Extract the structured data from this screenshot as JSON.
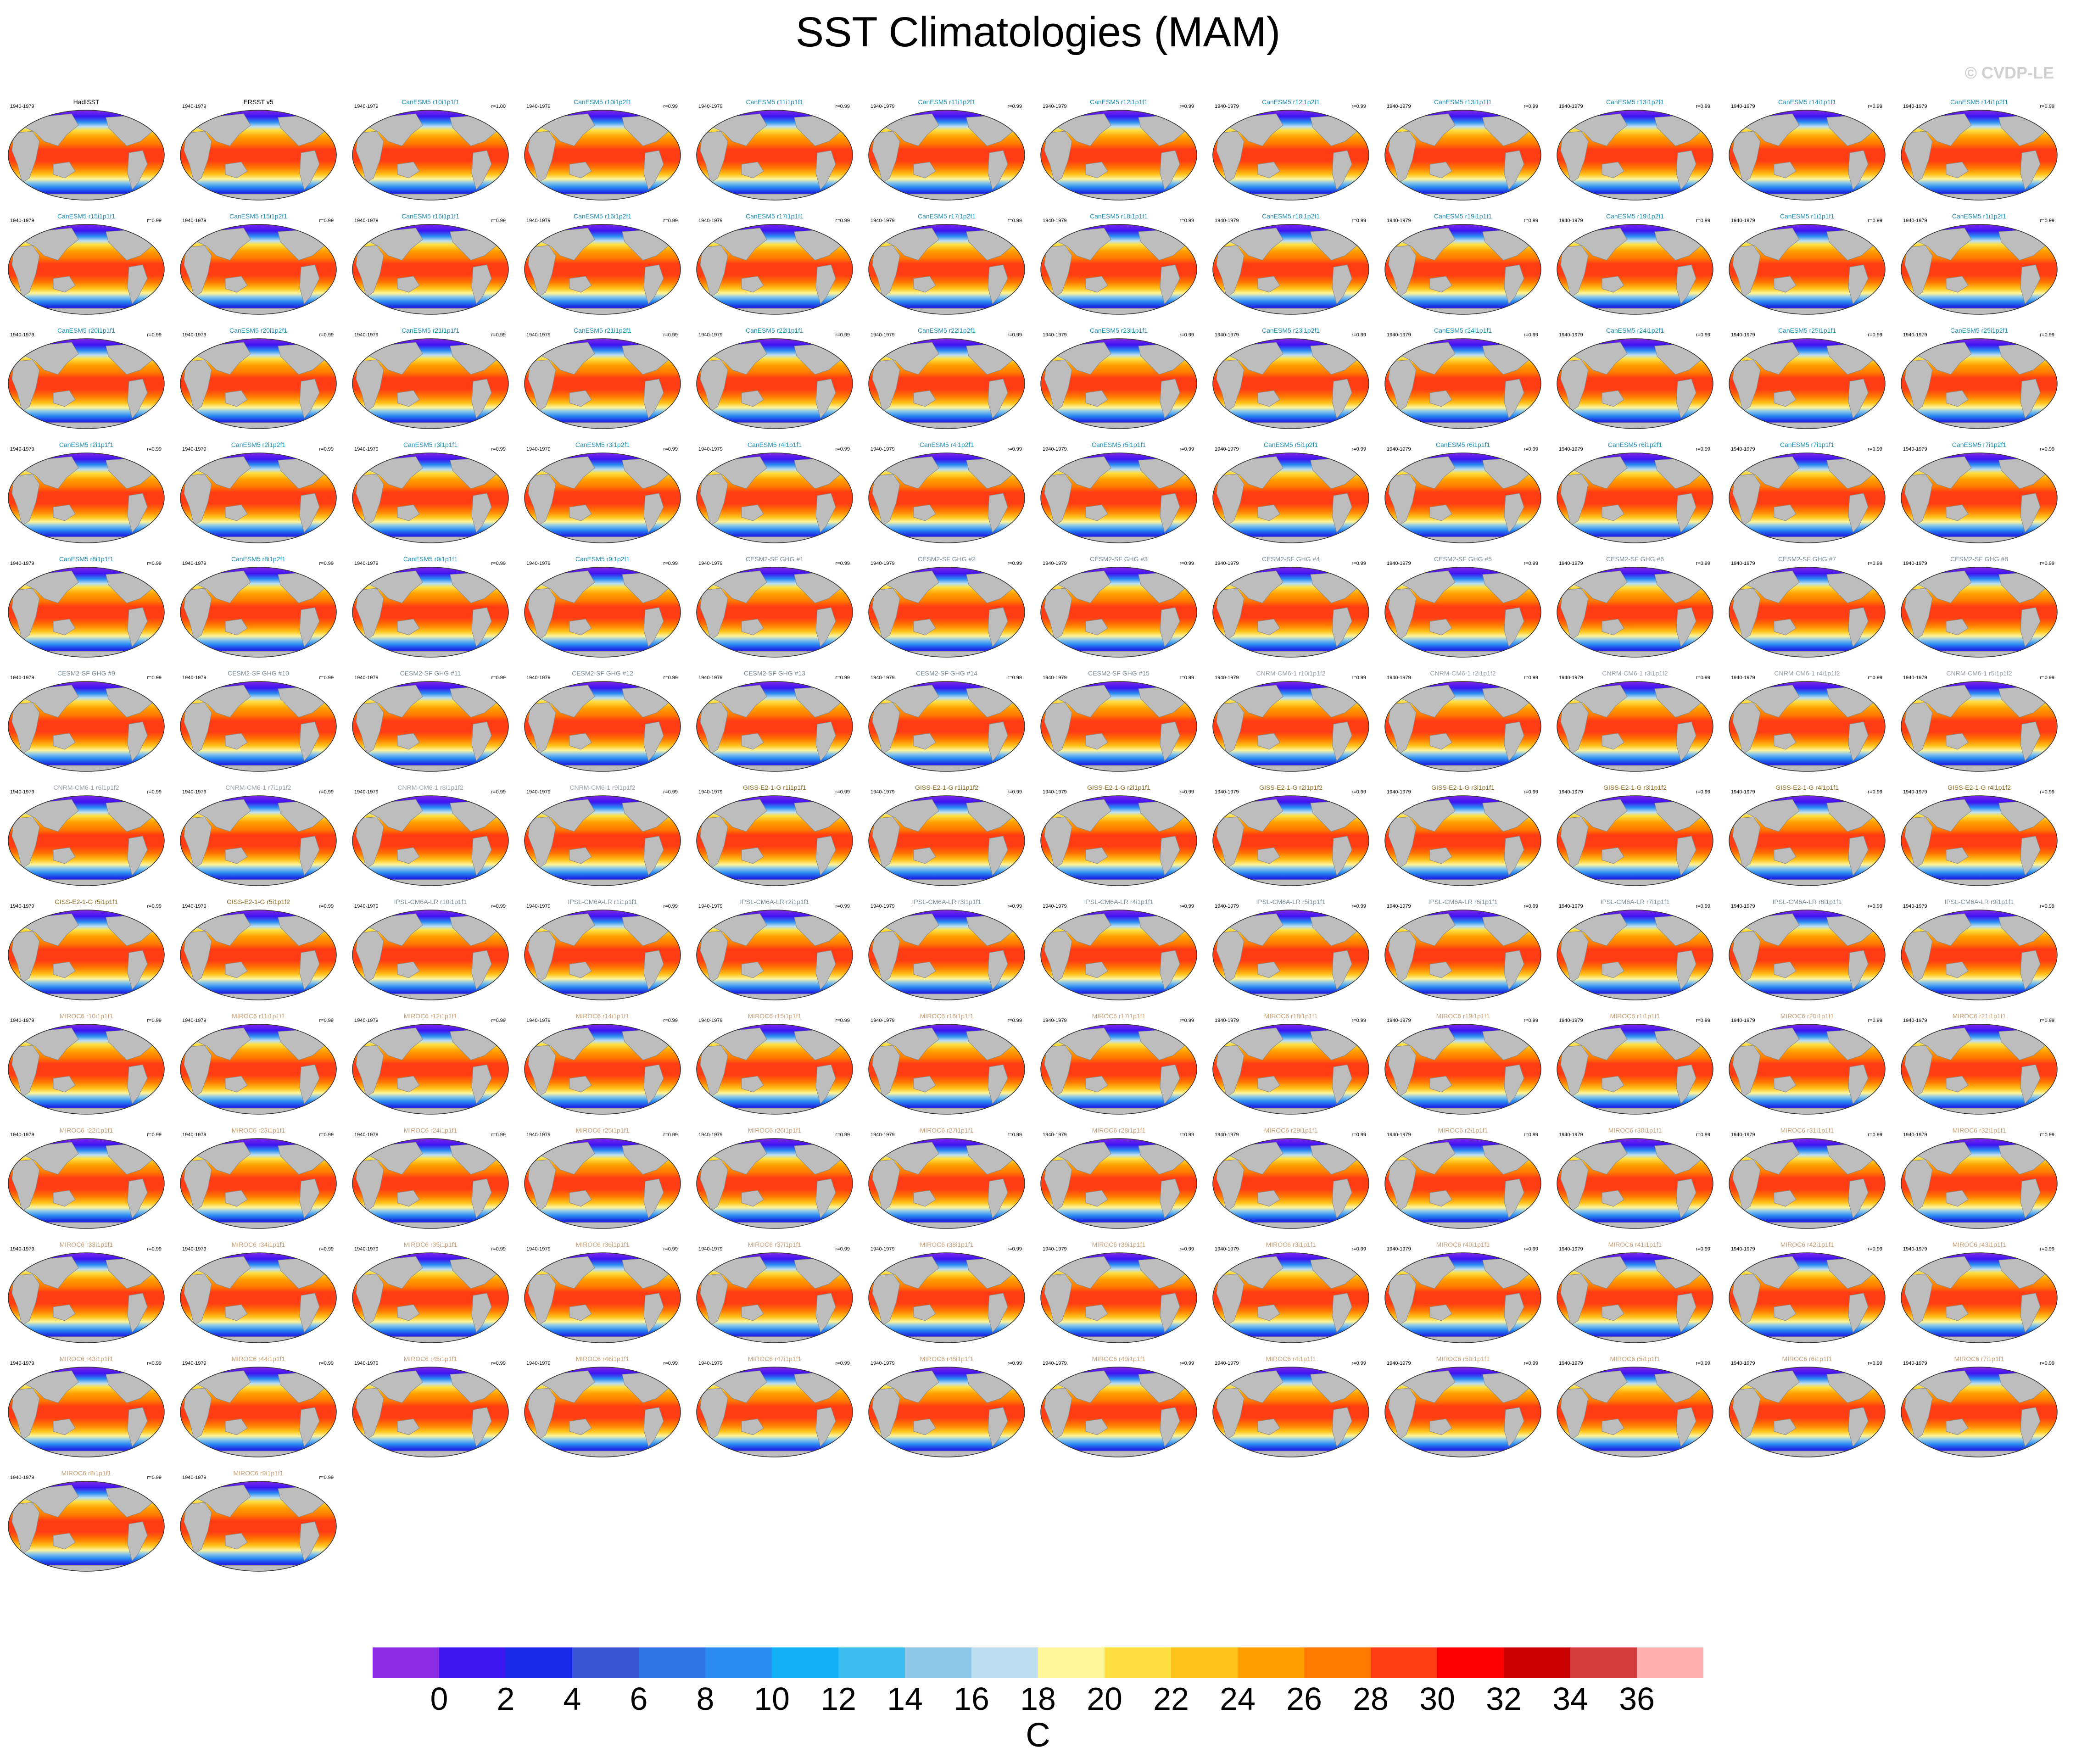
{
  "title": "SST Climatologies (MAM)",
  "copyright": "© CVDP-LE",
  "period": "1940-1979",
  "colorbar": {
    "unit": "C",
    "ticks": [
      "0",
      "2",
      "4",
      "6",
      "8",
      "10",
      "12",
      "14",
      "16",
      "18",
      "20",
      "22",
      "24",
      "26",
      "28",
      "30",
      "32",
      "34",
      "36"
    ],
    "colors": [
      "#8a2be6",
      "#3c14f0",
      "#1a28e6",
      "#3a55d4",
      "#2f75e6",
      "#2a8cf2",
      "#14b0f5",
      "#3cbef0",
      "#8ec8e8",
      "#bedff2",
      "#fff59a",
      "#ffe040",
      "#ffc21a",
      "#ffa000",
      "#ff7800",
      "#ff3c14",
      "#ff0000",
      "#c80000",
      "#d43c3c",
      "#ffb0b0"
    ]
  },
  "panels": [
    {
      "name": "HadISST",
      "r": "",
      "color": "#000000"
    },
    {
      "name": "ERSST v5",
      "r": "",
      "color": "#000000"
    },
    {
      "name": "CanESM5 r10i1p1f1",
      "r": "r=1.00",
      "color": "#1e8fb4"
    },
    {
      "name": "CanESM5 r10i1p2f1",
      "r": "r=0.99",
      "color": "#1e8fb4"
    },
    {
      "name": "CanESM5 r11i1p1f1",
      "r": "r=0.99",
      "color": "#1e8fb4"
    },
    {
      "name": "CanESM5 r11i1p2f1",
      "r": "r=0.99",
      "color": "#1e8fb4"
    },
    {
      "name": "CanESM5 r12i1p1f1",
      "r": "r=0.99",
      "color": "#1e8fb4"
    },
    {
      "name": "CanESM5 r12i1p2f1",
      "r": "r=0.99",
      "color": "#1e8fb4"
    },
    {
      "name": "CanESM5 r13i1p1f1",
      "r": "r=0.99",
      "color": "#1e8fb4"
    },
    {
      "name": "CanESM5 r13i1p2f1",
      "r": "r=0.99",
      "color": "#1e8fb4"
    },
    {
      "name": "CanESM5 r14i1p1f1",
      "r": "r=0.99",
      "color": "#1e8fb4"
    },
    {
      "name": "CanESM5 r14i1p2f1",
      "r": "r=0.99",
      "color": "#1e8fb4"
    },
    {
      "name": "CanESM5 r15i1p1f1",
      "r": "r=0.99",
      "color": "#1e8fb4"
    },
    {
      "name": "CanESM5 r15i1p2f1",
      "r": "r=0.99",
      "color": "#1e8fb4"
    },
    {
      "name": "CanESM5 r16i1p1f1",
      "r": "r=0.99",
      "color": "#1e8fb4"
    },
    {
      "name": "CanESM5 r16i1p2f1",
      "r": "r=0.99",
      "color": "#1e8fb4"
    },
    {
      "name": "CanESM5 r17i1p1f1",
      "r": "r=0.99",
      "color": "#1e8fb4"
    },
    {
      "name": "CanESM5 r17i1p2f1",
      "r": "r=0.99",
      "color": "#1e8fb4"
    },
    {
      "name": "CanESM5 r18i1p1f1",
      "r": "r=0.99",
      "color": "#1e8fb4"
    },
    {
      "name": "CanESM5 r18i1p2f1",
      "r": "r=0.99",
      "color": "#1e8fb4"
    },
    {
      "name": "CanESM5 r19i1p1f1",
      "r": "r=0.99",
      "color": "#1e8fb4"
    },
    {
      "name": "CanESM5 r19i1p2f1",
      "r": "r=0.99",
      "color": "#1e8fb4"
    },
    {
      "name": "CanESM5 r1i1p1f1",
      "r": "r=0.99",
      "color": "#1e8fb4"
    },
    {
      "name": "CanESM5 r1i1p2f1",
      "r": "r=0.99",
      "color": "#1e8fb4"
    },
    {
      "name": "CanESM5 r20i1p1f1",
      "r": "r=0.99",
      "color": "#1e8fb4"
    },
    {
      "name": "CanESM5 r20i1p2f1",
      "r": "r=0.99",
      "color": "#1e8fb4"
    },
    {
      "name": "CanESM5 r21i1p1f1",
      "r": "r=0.99",
      "color": "#1e8fb4"
    },
    {
      "name": "CanESM5 r21i1p2f1",
      "r": "r=0.99",
      "color": "#1e8fb4"
    },
    {
      "name": "CanESM5 r22i1p1f1",
      "r": "r=0.99",
      "color": "#1e8fb4"
    },
    {
      "name": "CanESM5 r22i1p2f1",
      "r": "r=0.99",
      "color": "#1e8fb4"
    },
    {
      "name": "CanESM5 r23i1p1f1",
      "r": "r=0.99",
      "color": "#1e8fb4"
    },
    {
      "name": "CanESM5 r23i1p2f1",
      "r": "r=0.99",
      "color": "#1e8fb4"
    },
    {
      "name": "CanESM5 r24i1p1f1",
      "r": "r=0.99",
      "color": "#1e8fb4"
    },
    {
      "name": "CanESM5 r24i1p2f1",
      "r": "r=0.99",
      "color": "#1e8fb4"
    },
    {
      "name": "CanESM5 r25i1p1f1",
      "r": "r=0.99",
      "color": "#1e8fb4"
    },
    {
      "name": "CanESM5 r25i1p2f1",
      "r": "r=0.99",
      "color": "#1e8fb4"
    },
    {
      "name": "CanESM5 r2i1p1f1",
      "r": "r=0.99",
      "color": "#1e8fb4"
    },
    {
      "name": "CanESM5 r2i1p2f1",
      "r": "r=0.99",
      "color": "#1e8fb4"
    },
    {
      "name": "CanESM5 r3i1p1f1",
      "r": "r=0.99",
      "color": "#1e8fb4"
    },
    {
      "name": "CanESM5 r3i1p2f1",
      "r": "r=0.99",
      "color": "#1e8fb4"
    },
    {
      "name": "CanESM5 r4i1p1f1",
      "r": "r=0.99",
      "color": "#1e8fb4"
    },
    {
      "name": "CanESM5 r4i1p2f1",
      "r": "r=0.99",
      "color": "#1e8fb4"
    },
    {
      "name": "CanESM5 r5i1p1f1",
      "r": "r=0.99",
      "color": "#1e8fb4"
    },
    {
      "name": "CanESM5 r5i1p2f1",
      "r": "r=0.99",
      "color": "#1e8fb4"
    },
    {
      "name": "CanESM5 r6i1p1f1",
      "r": "r=0.99",
      "color": "#1e8fb4"
    },
    {
      "name": "CanESM5 r6i1p2f1",
      "r": "r=0.99",
      "color": "#1e8fb4"
    },
    {
      "name": "CanESM5 r7i1p1f1",
      "r": "r=0.99",
      "color": "#1e8fb4"
    },
    {
      "name": "CanESM5 r7i1p2f1",
      "r": "r=0.99",
      "color": "#1e8fb4"
    },
    {
      "name": "CanESM5 r8i1p1f1",
      "r": "r=0.99",
      "color": "#1e8fb4"
    },
    {
      "name": "CanESM5 r8i1p2f1",
      "r": "r=0.99",
      "color": "#1e8fb4"
    },
    {
      "name": "CanESM5 r9i1p1f1",
      "r": "r=0.99",
      "color": "#1e8fb4"
    },
    {
      "name": "CanESM5 r9i1p2f1",
      "r": "r=0.99",
      "color": "#1e8fb4"
    },
    {
      "name": "CESM2-SF GHG #1",
      "r": "r=0.99",
      "color": "#7a8c96"
    },
    {
      "name": "CESM2-SF GHG #2",
      "r": "r=0.99",
      "color": "#7a8c96"
    },
    {
      "name": "CESM2-SF GHG #3",
      "r": "r=0.99",
      "color": "#7a8c96"
    },
    {
      "name": "CESM2-SF GHG #4",
      "r": "r=0.99",
      "color": "#7a8c96"
    },
    {
      "name": "CESM2-SF GHG #5",
      "r": "r=0.99",
      "color": "#7a8c96"
    },
    {
      "name": "CESM2-SF GHG #6",
      "r": "r=0.99",
      "color": "#7a8c96"
    },
    {
      "name": "CESM2-SF GHG #7",
      "r": "r=0.99",
      "color": "#7a8c96"
    },
    {
      "name": "CESM2-SF GHG #8",
      "r": "r=0.99",
      "color": "#7a8c96"
    },
    {
      "name": "CESM2-SF GHG #9",
      "r": "r=0.99",
      "color": "#7a8c96"
    },
    {
      "name": "CESM2-SF GHG #10",
      "r": "r=0.99",
      "color": "#7a8c96"
    },
    {
      "name": "CESM2-SF GHG #11",
      "r": "r=0.99",
      "color": "#7a8c96"
    },
    {
      "name": "CESM2-SF GHG #12",
      "r": "r=0.99",
      "color": "#7a8c96"
    },
    {
      "name": "CESM2-SF GHG #13",
      "r": "r=0.99",
      "color": "#7a8c96"
    },
    {
      "name": "CESM2-SF GHG #14",
      "r": "r=0.99",
      "color": "#7a8c96"
    },
    {
      "name": "CESM2-SF GHG #15",
      "r": "r=0.99",
      "color": "#7a8c96"
    },
    {
      "name": "CNRM-CM6-1 r10i1p1f2",
      "r": "r=0.99",
      "color": "#9aa0aa"
    },
    {
      "name": "CNRM-CM6-1 r2i1p1f2",
      "r": "r=0.99",
      "color": "#9aa0aa"
    },
    {
      "name": "CNRM-CM6-1 r3i1p1f2",
      "r": "r=0.99",
      "color": "#9aa0aa"
    },
    {
      "name": "CNRM-CM6-1 r4i1p1f2",
      "r": "r=0.99",
      "color": "#9aa0aa"
    },
    {
      "name": "CNRM-CM6-1 r5i1p1f2",
      "r": "r=0.99",
      "color": "#9aa0aa"
    },
    {
      "name": "CNRM-CM6-1 r6i1p1f2",
      "r": "r=0.99",
      "color": "#9aa0aa"
    },
    {
      "name": "CNRM-CM6-1 r7i1p1f2",
      "r": "r=0.99",
      "color": "#9aa0aa"
    },
    {
      "name": "CNRM-CM6-1 r8i1p1f2",
      "r": "r=0.99",
      "color": "#9aa0aa"
    },
    {
      "name": "CNRM-CM6-1 r9i1p1f2",
      "r": "r=0.99",
      "color": "#9aa0aa"
    },
    {
      "name": "GISS-E2-1-G r1i1p1f1",
      "r": "r=0.99",
      "color": "#8a6a1e"
    },
    {
      "name": "GISS-E2-1-G r1i1p1f2",
      "r": "r=0.99",
      "color": "#8a6a1e"
    },
    {
      "name": "GISS-E2-1-G r2i1p1f1",
      "r": "r=0.99",
      "color": "#8a6a1e"
    },
    {
      "name": "GISS-E2-1-G r2i1p1f2",
      "r": "r=0.99",
      "color": "#8a6a1e"
    },
    {
      "name": "GISS-E2-1-G r3i1p1f1",
      "r": "r=0.99",
      "color": "#8a6a1e"
    },
    {
      "name": "GISS-E2-1-G r3i1p1f2",
      "r": "r=0.99",
      "color": "#8a6a1e"
    },
    {
      "name": "GISS-E2-1-G r4i1p1f1",
      "r": "r=0.99",
      "color": "#8a6a1e"
    },
    {
      "name": "GISS-E2-1-G r4i1p1f2",
      "r": "r=0.99",
      "color": "#8a6a1e"
    },
    {
      "name": "GISS-E2-1-G r5i1p1f1",
      "r": "r=0.99",
      "color": "#8a6a1e"
    },
    {
      "name": "GISS-E2-1-G r5i1p1f2",
      "r": "r=0.99",
      "color": "#8a6a1e"
    },
    {
      "name": "IPSL-CM6A-LR r10i1p1f1",
      "r": "r=0.99",
      "color": "#7a8c96"
    },
    {
      "name": "IPSL-CM6A-LR r1i1p1f1",
      "r": "r=0.99",
      "color": "#7a8c96"
    },
    {
      "name": "IPSL-CM6A-LR r2i1p1f1",
      "r": "r=0.99",
      "color": "#7a8c96"
    },
    {
      "name": "IPSL-CM6A-LR r3i1p1f1",
      "r": "r=0.99",
      "color": "#7a8c96"
    },
    {
      "name": "IPSL-CM6A-LR r4i1p1f1",
      "r": "r=0.99",
      "color": "#7a8c96"
    },
    {
      "name": "IPSL-CM6A-LR r5i1p1f1",
      "r": "r=0.99",
      "color": "#7a8c96"
    },
    {
      "name": "IPSL-CM6A-LR r6i1p1f1",
      "r": "r=0.99",
      "color": "#7a8c96"
    },
    {
      "name": "IPSL-CM6A-LR r7i1p1f1",
      "r": "r=0.99",
      "color": "#7a8c96"
    },
    {
      "name": "IPSL-CM6A-LR r8i1p1f1",
      "r": "r=0.99",
      "color": "#7a8c96"
    },
    {
      "name": "IPSL-CM6A-LR r9i1p1f1",
      "r": "r=0.99",
      "color": "#7a8c96"
    },
    {
      "name": "MIROC6 r10i1p1f1",
      "r": "r=0.99",
      "color": "#c8a078"
    },
    {
      "name": "MIROC6 r11i1p1f1",
      "r": "r=0.99",
      "color": "#c8a078"
    },
    {
      "name": "MIROC6 r12i1p1f1",
      "r": "r=0.99",
      "color": "#c8a078"
    },
    {
      "name": "MIROC6 r14i1p1f1",
      "r": "r=0.99",
      "color": "#c8a078"
    },
    {
      "name": "MIROC6 r15i1p1f1",
      "r": "r=0.99",
      "color": "#c8a078"
    },
    {
      "name": "MIROC6 r16i1p1f1",
      "r": "r=0.99",
      "color": "#c8a078"
    },
    {
      "name": "MIROC6 r17i1p1f1",
      "r": "r=0.99",
      "color": "#c8a078"
    },
    {
      "name": "MIROC6 r18i1p1f1",
      "r": "r=0.99",
      "color": "#c8a078"
    },
    {
      "name": "MIROC6 r19i1p1f1",
      "r": "r=0.99",
      "color": "#c8a078"
    },
    {
      "name": "MIROC6 r1i1p1f1",
      "r": "r=0.99",
      "color": "#c8a078"
    },
    {
      "name": "MIROC6 r20i1p1f1",
      "r": "r=0.99",
      "color": "#c8a078"
    },
    {
      "name": "MIROC6 r21i1p1f1",
      "r": "r=0.99",
      "color": "#c8a078"
    },
    {
      "name": "MIROC6 r22i1p1f1",
      "r": "r=0.99",
      "color": "#c8a078"
    },
    {
      "name": "MIROC6 r23i1p1f1",
      "r": "r=0.99",
      "color": "#c8a078"
    },
    {
      "name": "MIROC6 r24i1p1f1",
      "r": "r=0.99",
      "color": "#c8a078"
    },
    {
      "name": "MIROC6 r25i1p1f1",
      "r": "r=0.99",
      "color": "#c8a078"
    },
    {
      "name": "MIROC6 r26i1p1f1",
      "r": "r=0.99",
      "color": "#c8a078"
    },
    {
      "name": "MIROC6 r27i1p1f1",
      "r": "r=0.99",
      "color": "#c8a078"
    },
    {
      "name": "MIROC6 r28i1p1f1",
      "r": "r=0.99",
      "color": "#c8a078"
    },
    {
      "name": "MIROC6 r29i1p1f1",
      "r": "r=0.99",
      "color": "#c8a078"
    },
    {
      "name": "MIROC6 r2i1p1f1",
      "r": "r=0.99",
      "color": "#c8a078"
    },
    {
      "name": "MIROC6 r30i1p1f1",
      "r": "r=0.99",
      "color": "#c8a078"
    },
    {
      "name": "MIROC6 r31i1p1f1",
      "r": "r=0.99",
      "color": "#c8a078"
    },
    {
      "name": "MIROC6 r32i1p1f1",
      "r": "r=0.99",
      "color": "#c8a078"
    },
    {
      "name": "MIROC6 r33i1p1f1",
      "r": "r=0.99",
      "color": "#c8a078"
    },
    {
      "name": "MIROC6 r34i1p1f1",
      "r": "r=0.99",
      "color": "#c8a078"
    },
    {
      "name": "MIROC6 r35i1p1f1",
      "r": "r=0.99",
      "color": "#c8a078"
    },
    {
      "name": "MIROC6 r36i1p1f1",
      "r": "r=0.99",
      "color": "#c8a078"
    },
    {
      "name": "MIROC6 r37i1p1f1",
      "r": "r=0.99",
      "color": "#c8a078"
    },
    {
      "name": "MIROC6 r38i1p1f1",
      "r": "r=0.99",
      "color": "#c8a078"
    },
    {
      "name": "MIROC6 r39i1p1f1",
      "r": "r=0.99",
      "color": "#c8a078"
    },
    {
      "name": "MIROC6 r3i1p1f1",
      "r": "r=0.99",
      "color": "#c8a078"
    },
    {
      "name": "MIROC6 r40i1p1f1",
      "r": "r=0.99",
      "color": "#c8a078"
    },
    {
      "name": "MIROC6 r41i1p1f1",
      "r": "r=0.99",
      "color": "#c8a078"
    },
    {
      "name": "MIROC6 r42i1p1f1",
      "r": "r=0.99",
      "color": "#c8a078"
    },
    {
      "name": "MIROC6 r43i1p1f1",
      "r": "r=0.99",
      "color": "#c8a078"
    },
    {
      "name": "MIROC6 r43i1p1f1",
      "r": "r=0.99",
      "color": "#c8a078"
    },
    {
      "name": "MIROC6 r44i1p1f1",
      "r": "r=0.99",
      "color": "#c8a078"
    },
    {
      "name": "MIROC6 r45i1p1f1",
      "r": "r=0.99",
      "color": "#c8a078"
    },
    {
      "name": "MIROC6 r46i1p1f1",
      "r": "r=0.99",
      "color": "#c8a078"
    },
    {
      "name": "MIROC6 r47i1p1f1",
      "r": "r=0.99",
      "color": "#c8a078"
    },
    {
      "name": "MIROC6 r48i1p1f1",
      "r": "r=0.99",
      "color": "#c8a078"
    },
    {
      "name": "MIROC6 r49i1p1f1",
      "r": "r=0.99",
      "color": "#c8a078"
    },
    {
      "name": "MIROC6 r4i1p1f1",
      "r": "r=0.99",
      "color": "#c8a078"
    },
    {
      "name": "MIROC6 r50i1p1f1",
      "r": "r=0.99",
      "color": "#c8a078"
    },
    {
      "name": "MIROC6 r5i1p1f1",
      "r": "r=0.99",
      "color": "#c8a078"
    },
    {
      "name": "MIROC6 r6i1p1f1",
      "r": "r=0.99",
      "color": "#c8a078"
    },
    {
      "name": "MIROC6 r7i1p1f1",
      "r": "r=0.99",
      "color": "#c8a078"
    },
    {
      "name": "MIROC6 r8i1p1f1",
      "r": "r=0.99",
      "color": "#c8a078"
    },
    {
      "name": "MIROC6 r9i1p1f1",
      "r": "r=0.99",
      "color": "#c8a078"
    }
  ]
}
